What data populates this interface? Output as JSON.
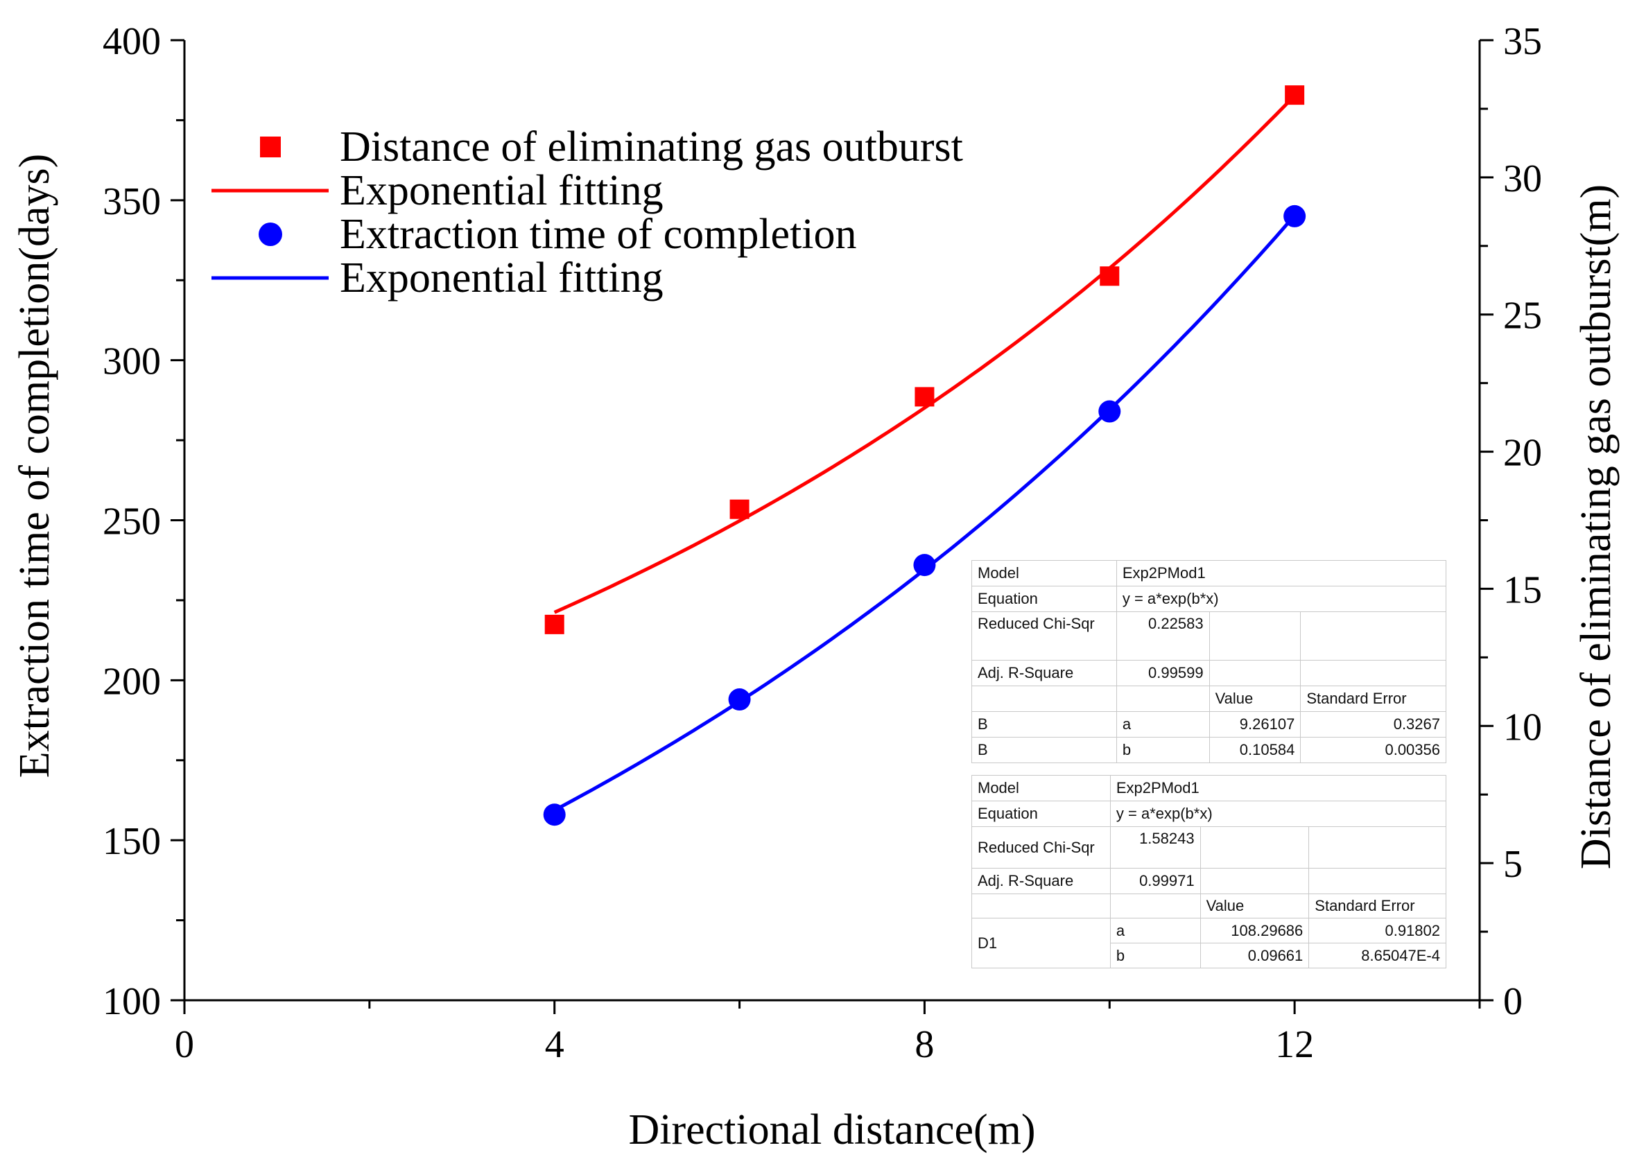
{
  "chart_data": {
    "type": "scatter",
    "xlabel": "Directional distance(m)",
    "ylabel_left": "Extraction time of completion(days)",
    "ylabel_right": "Distance of eliminating gas outburst(m)",
    "xlim": [
      0,
      14
    ],
    "ylim_left": [
      100,
      400
    ],
    "ylim_right": [
      0,
      35
    ],
    "x_ticks": [
      0,
      4,
      8,
      12
    ],
    "x_tick_labels": [
      "0",
      "4",
      "8",
      "12"
    ],
    "y_left_ticks": [
      100,
      150,
      200,
      250,
      300,
      350,
      400
    ],
    "y_left_tick_labels": [
      "100",
      "150",
      "200",
      "250",
      "300",
      "350",
      "400"
    ],
    "y_right_ticks": [
      0,
      5,
      10,
      15,
      20,
      25,
      30,
      35
    ],
    "y_right_tick_labels": [
      "0",
      "5",
      "10",
      "15",
      "20",
      "25",
      "30",
      "35"
    ],
    "series": [
      {
        "name": "Distance of eliminating gas outburst",
        "axis": "right",
        "marker": "square",
        "color": "#ff0000",
        "x": [
          4,
          6,
          8,
          10,
          12
        ],
        "y": [
          13.7,
          17.9,
          22.0,
          26.4,
          33.0
        ]
      },
      {
        "name": "Exponential fitting",
        "axis": "right",
        "kind": "fit",
        "color": "#ff0000",
        "a": 9.26107,
        "b": 0.10584,
        "x_range": [
          4,
          12
        ]
      },
      {
        "name": "Extraction time of completion",
        "axis": "left",
        "marker": "circle",
        "color": "#0000ff",
        "x": [
          4,
          6,
          8,
          10,
          12
        ],
        "y": [
          158,
          194,
          236,
          284,
          345
        ]
      },
      {
        "name": "Exponential fitting",
        "axis": "left",
        "kind": "fit",
        "color": "#0000ff",
        "a": 108.29686,
        "b": 0.09661,
        "x_range": [
          4,
          12
        ]
      }
    ],
    "legend_position": "top-left"
  },
  "fit_table_1": {
    "model_label": "Model",
    "model_value": "Exp2PMod1",
    "equation_label": "Equation",
    "equation_value": "y = a*exp(b*x)",
    "chisqr_label": "Reduced Chi-Sqr",
    "chisqr_value": "0.22583",
    "rsq_label": "Adj. R-Square",
    "rsq_value": "0.99599",
    "value_header": "Value",
    "stderr_header": "Standard Error",
    "rows": [
      {
        "name": "B",
        "param": "a",
        "value": "9.26107",
        "stderr": "0.3267"
      },
      {
        "name": "B",
        "param": "b",
        "value": "0.10584",
        "stderr": "0.00356"
      }
    ]
  },
  "fit_table_2": {
    "model_label": "Model",
    "model_value": "Exp2PMod1",
    "equation_label": "Equation",
    "equation_value": "y = a*exp(b*x)",
    "chisqr_label": "Reduced Chi-Sqr",
    "chisqr_value": "1.58243",
    "rsq_label": "Adj. R-Square",
    "rsq_value": "0.99971",
    "value_header": "Value",
    "stderr_header": "Standard Error",
    "group_name": "D1",
    "rows": [
      {
        "param": "a",
        "value": "108.29686",
        "stderr": "0.91802"
      },
      {
        "param": "b",
        "value": "0.09661",
        "stderr": "8.65047E-4"
      }
    ]
  }
}
